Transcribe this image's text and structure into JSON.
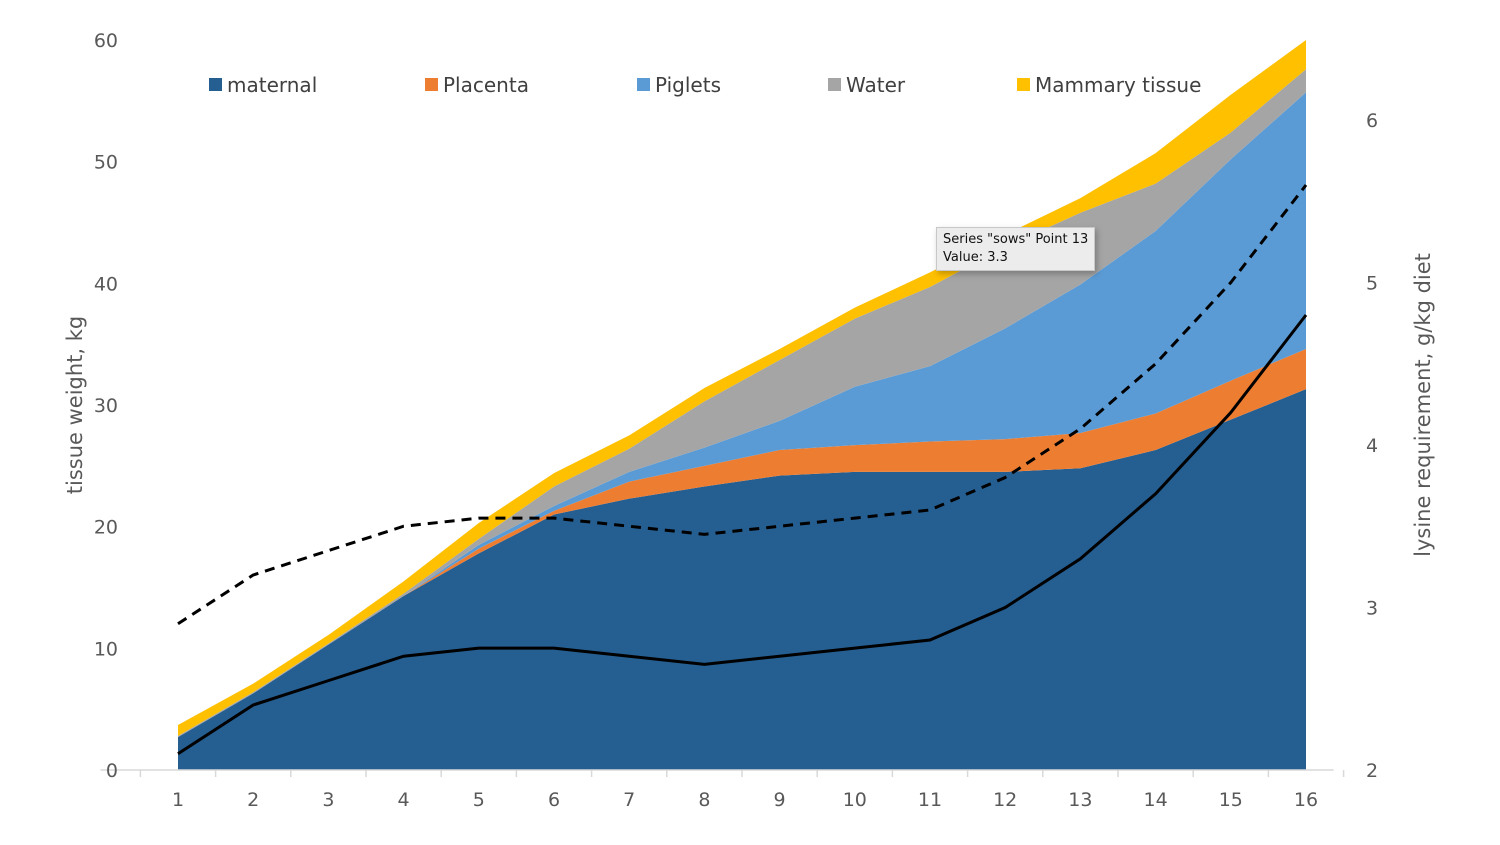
{
  "chart_data": {
    "type": "area",
    "stacked": true,
    "categories": [
      "1",
      "2",
      "3",
      "4",
      "5",
      "6",
      "7",
      "8",
      "9",
      "10",
      "11",
      "12",
      "13",
      "14",
      "15",
      "16"
    ],
    "ylabel": "tissue weight, kg",
    "ylim": [
      0,
      60
    ],
    "yticks": [
      0,
      10,
      20,
      30,
      40,
      50,
      60
    ],
    "y2label": "lysine requirement, g/kg diet",
    "y2lim": [
      2,
      6.5
    ],
    "y2ticks": [
      2,
      3,
      4,
      5,
      6
    ],
    "grid": false,
    "legend_position": "top",
    "series": [
      {
        "name": "maternal",
        "color": "#255E91",
        "values": [
          2.7,
          6.3,
          10.3,
          14.3,
          17.8,
          21.0,
          22.3,
          23.3,
          24.2,
          24.5,
          24.5,
          24.5,
          24.8,
          26.3,
          28.8,
          31.3
        ]
      },
      {
        "name": "Placenta",
        "color": "#ED7D31",
        "values": [
          0,
          0,
          0,
          0,
          0.4,
          0.3,
          1.4,
          1.7,
          2.1,
          2.2,
          2.5,
          2.7,
          2.9,
          3.0,
          3.2,
          3.3
        ]
      },
      {
        "name": "Piglets",
        "color": "#5B9BD5",
        "values": [
          0,
          0,
          0,
          0,
          0.3,
          0.4,
          0.8,
          1.5,
          2.4,
          4.8,
          6.2,
          9.1,
          12.2,
          15.0,
          18.2,
          21.1
        ]
      },
      {
        "name": "Water",
        "color": "#A5A5A5",
        "values": [
          0.1,
          0.1,
          0.1,
          0.2,
          0.5,
          1.6,
          1.9,
          3.8,
          5.0,
          5.6,
          6.5,
          6.7,
          5.9,
          3.9,
          2.2,
          1.9
        ]
      },
      {
        "name": "Mammary tissue",
        "color": "#FFC000",
        "values": [
          0.9,
          0.7,
          0.7,
          1.0,
          1.3,
          1.1,
          1.1,
          1.1,
          0.9,
          0.9,
          1.2,
          1.0,
          1.2,
          2.5,
          3.1,
          2.4
        ]
      }
    ],
    "lines_secondary_axis": [
      {
        "name": "sows",
        "style": "solid",
        "color": "#000000",
        "values": [
          2.1,
          2.4,
          2.55,
          2.7,
          2.75,
          2.75,
          2.7,
          2.65,
          2.7,
          2.75,
          2.8,
          3.0,
          3.3,
          3.7,
          4.2,
          4.8
        ]
      },
      {
        "style": "dashed",
        "color": "#000000",
        "values": [
          2.9,
          3.2,
          3.35,
          3.5,
          3.55,
          3.55,
          3.5,
          3.45,
          3.5,
          3.55,
          3.6,
          3.8,
          4.1,
          4.5,
          5.0,
          5.6
        ]
      }
    ]
  },
  "tooltip": {
    "line1": "Series \"sows\" Point 13",
    "line2": "Value: 3.3"
  }
}
